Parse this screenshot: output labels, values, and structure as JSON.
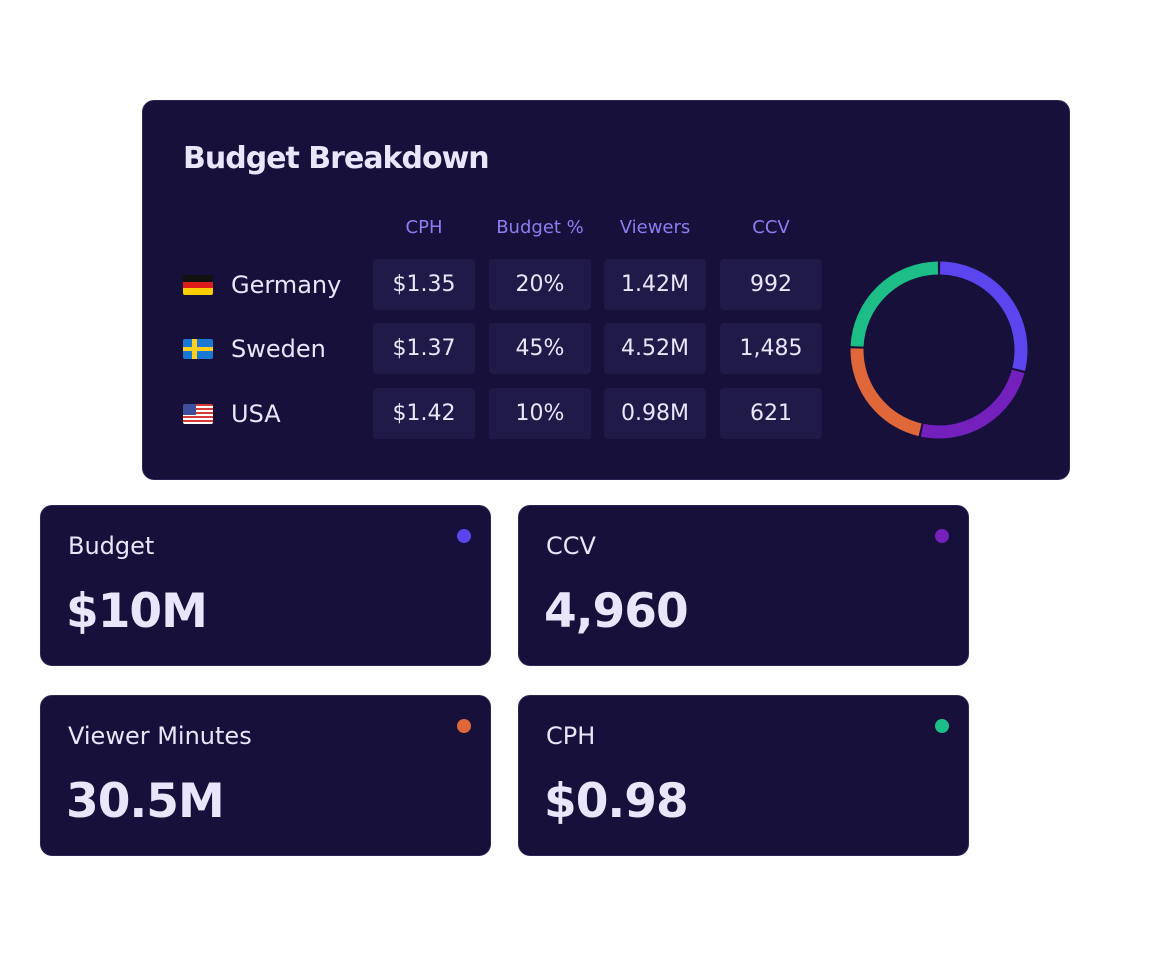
{
  "breakdown": {
    "title": "Budget Breakdown",
    "columns": [
      "CPH",
      "Budget %",
      "Viewers",
      "CCV"
    ],
    "rows": [
      {
        "country": "Germany",
        "flag": "flag-germany",
        "values": [
          "$1.35",
          "20%",
          "1.42M",
          "992"
        ]
      },
      {
        "country": "Sweden",
        "flag": "flag-sweden",
        "values": [
          "$1.37",
          "45%",
          "4.52M",
          "1,485"
        ]
      },
      {
        "country": "USA",
        "flag": "flag-usa",
        "values": [
          "$1.42",
          "10%",
          "0.98M",
          "621"
        ]
      }
    ],
    "donut_segments": [
      {
        "color": "#5b45ee",
        "share": 0.29
      },
      {
        "color": "#7320bd",
        "share": 0.245
      },
      {
        "color": "#e0673a",
        "share": 0.22
      },
      {
        "color": "#1cbd86",
        "share": 0.245
      }
    ]
  },
  "cards": [
    {
      "label": "Budget",
      "value": "$10M",
      "dot_color": "#5b45ee"
    },
    {
      "label": "CCV",
      "value": "4,960",
      "dot_color": "#7320bd"
    },
    {
      "label": "Viewer Minutes",
      "value": "30.5M",
      "dot_color": "#e0673a"
    },
    {
      "label": "CPH",
      "value": "$0.98",
      "dot_color": "#1cbd86"
    }
  ]
}
